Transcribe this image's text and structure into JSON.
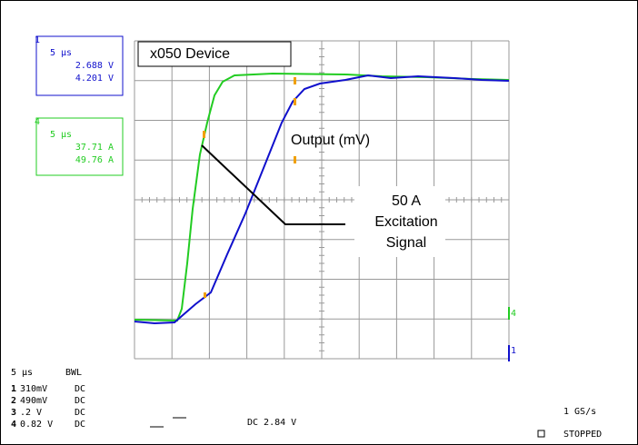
{
  "screen": {
    "title_box": "x050 Device",
    "annotations": {
      "output": "Output (mV)",
      "excitation": [
        "50 A",
        "Excitation",
        "Signal"
      ]
    },
    "channel_boxes": [
      {
        "marker": "1",
        "lines": [
          "5 µs",
          "2.688 V",
          "4.201 V"
        ]
      },
      {
        "marker": "4",
        "lines": [
          "5 µs",
          "37.71 A",
          "49.76 A"
        ]
      }
    ],
    "trace_markers": [
      "4",
      "1"
    ],
    "timebase": "5 µs",
    "bwl": "BWL",
    "channels": [
      {
        "num": "1",
        "setting": "310mV",
        "coupling": "DC"
      },
      {
        "num": "2",
        "setting": "490mV",
        "coupling": "DC"
      },
      {
        "num": "3",
        "setting": ".2  V",
        "coupling": "DC"
      },
      {
        "num": "4",
        "setting": "0.82 V",
        "coupling": "DC"
      }
    ],
    "trigger": "DC 2.84 V",
    "sample_rate": "1 GS/s",
    "status": "STOPPED"
  }
}
